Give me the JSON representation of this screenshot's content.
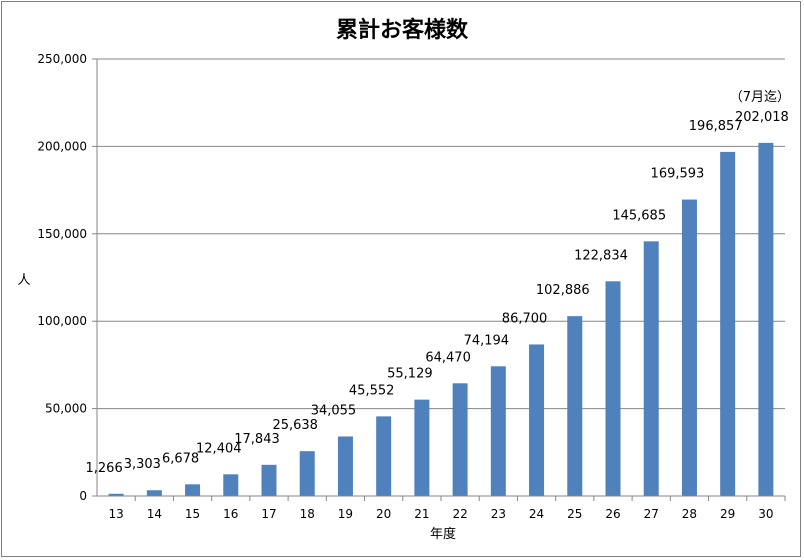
{
  "chart_data": {
    "type": "bar",
    "title": "累計お客様数",
    "xlabel": "年度",
    "ylabel": "人",
    "ylim": [
      0,
      250000
    ],
    "yticks": [
      "0",
      "50,000",
      "100,000",
      "150,000",
      "200,000",
      "250,000"
    ],
    "categories": [
      "13",
      "14",
      "15",
      "16",
      "17",
      "18",
      "19",
      "20",
      "21",
      "22",
      "23",
      "24",
      "25",
      "26",
      "27",
      "28",
      "29",
      "30"
    ],
    "values": [
      1266,
      3303,
      6678,
      12404,
      17843,
      25638,
      34055,
      45552,
      55129,
      64470,
      74194,
      86700,
      102886,
      122834,
      145685,
      169593,
      196857,
      202018
    ],
    "data_labels": [
      "1,266",
      "3,303",
      "6,678",
      "12,404",
      "17,843",
      "25,638",
      "34,055",
      "45,552",
      "55,129",
      "64,470",
      "74,194",
      "86,700",
      "102,886",
      "122,834",
      "145,685",
      "169,593",
      "196,857",
      "202,018"
    ],
    "annotation": "（7月迄）",
    "bar_color": "#4f81bd",
    "grid": true,
    "legend": "none"
  }
}
